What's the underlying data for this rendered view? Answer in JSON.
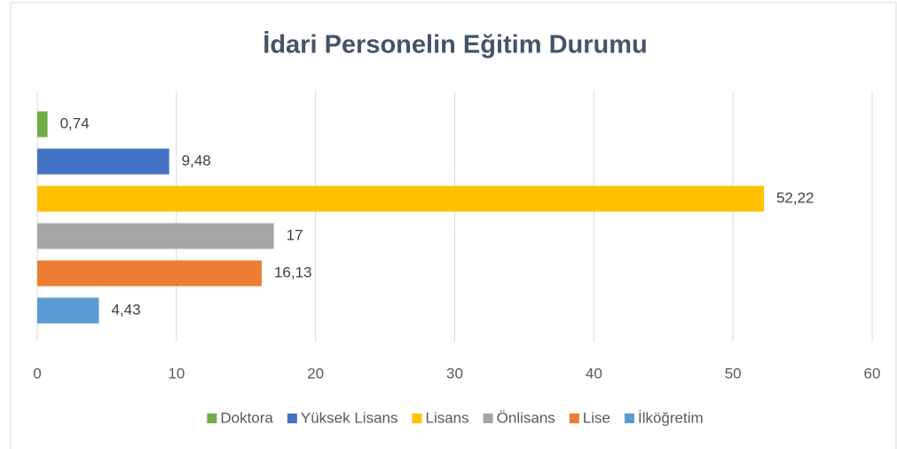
{
  "chart_data": {
    "type": "bar",
    "orientation": "horizontal",
    "title": "İdari Personelin Eğitim Durumu",
    "categories": [
      null
    ],
    "series": [
      {
        "name": "Doktora",
        "color": "#70ad47",
        "values": [
          0.74
        ],
        "value_labels": [
          "0,74"
        ]
      },
      {
        "name": "Yüksek Lisans",
        "color": "#4472c4",
        "values": [
          9.48
        ],
        "value_labels": [
          "9,48"
        ]
      },
      {
        "name": "Lisans",
        "color": "#ffc000",
        "values": [
          52.22
        ],
        "value_labels": [
          "52,22"
        ]
      },
      {
        "name": "Önlisans",
        "color": "#a5a5a5",
        "values": [
          17
        ]
      },
      {
        "name": "Lise",
        "color": "#ed7d31",
        "values": [
          16.13
        ],
        "value_labels": [
          "16,13"
        ]
      },
      {
        "name": "İlköğretim",
        "color": "#5b9bd5",
        "values": [
          4.43
        ],
        "value_labels": [
          "4,43"
        ]
      }
    ],
    "xlim": [
      0,
      60
    ],
    "xticks": [
      0,
      10,
      20,
      30,
      40,
      50,
      60
    ],
    "grid": true,
    "legend": "bottom"
  }
}
